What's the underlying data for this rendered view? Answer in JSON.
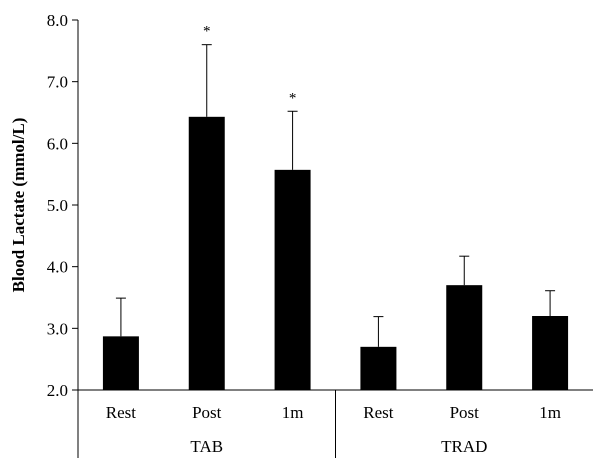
{
  "chart_data": {
    "type": "bar",
    "title": "",
    "xlabel": "",
    "ylabel": "Blood Lactate (mmol/L)",
    "ylim": [
      2.0,
      8.0
    ],
    "yticks": [
      "2.0",
      "3.0",
      "4.0",
      "5.0",
      "6.0",
      "7.0",
      "8.0"
    ],
    "grid": false,
    "groups": [
      {
        "label": "TAB",
        "categories": [
          "Rest",
          "Post",
          "1m"
        ],
        "values": [
          2.87,
          6.43,
          5.57
        ],
        "errors": [
          0.62,
          1.17,
          0.95
        ],
        "annotations": [
          "",
          "*",
          "*"
        ]
      },
      {
        "label": "TRAD",
        "categories": [
          "Rest",
          "Post",
          "1m"
        ],
        "values": [
          2.7,
          3.7,
          3.2
        ],
        "errors": [
          0.49,
          0.47,
          0.41
        ],
        "annotations": [
          "",
          "",
          ""
        ]
      }
    ],
    "bar_color": "#000000"
  }
}
